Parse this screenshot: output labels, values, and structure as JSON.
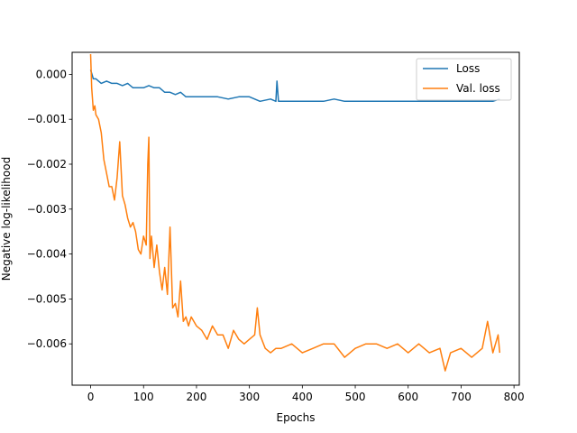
{
  "chart_data": {
    "type": "line",
    "title": "",
    "xlabel": "Epochs",
    "ylabel": "Negative log-likelihood",
    "xlim": [
      -35,
      810
    ],
    "ylim": [
      -0.00692,
      0.00049
    ],
    "xticks": [
      0,
      100,
      200,
      300,
      400,
      500,
      600,
      700,
      800
    ],
    "xtick_labels": [
      "0",
      "100",
      "200",
      "300",
      "400",
      "500",
      "600",
      "700",
      "800"
    ],
    "yticks": [
      0.0,
      -0.001,
      -0.002,
      -0.003,
      -0.004,
      -0.005,
      -0.006
    ],
    "ytick_labels": [
      "0.000",
      "−0.001",
      "−0.002",
      "−0.003",
      "−0.004",
      "−0.005",
      "−0.006"
    ],
    "grid": false,
    "legend_position": "top-right",
    "series": [
      {
        "name": "Loss",
        "color": "#1f77b4",
        "x": [
          0,
          5,
          10,
          20,
          30,
          40,
          50,
          60,
          70,
          80,
          90,
          100,
          110,
          120,
          130,
          140,
          150,
          160,
          170,
          180,
          190,
          200,
          220,
          240,
          260,
          280,
          300,
          320,
          340,
          350,
          352,
          355,
          360,
          380,
          400,
          420,
          440,
          460,
          480,
          500,
          520,
          540,
          560,
          580,
          600,
          620,
          640,
          660,
          680,
          700,
          720,
          740,
          760,
          773
        ],
        "y": [
          0.0001,
          -0.0001,
          -0.0001,
          -0.0002,
          -0.00015,
          -0.0002,
          -0.0002,
          -0.00025,
          -0.0002,
          -0.0003,
          -0.0003,
          -0.0003,
          -0.00025,
          -0.0003,
          -0.0003,
          -0.0004,
          -0.0004,
          -0.00045,
          -0.0004,
          -0.0005,
          -0.0005,
          -0.0005,
          -0.0005,
          -0.0005,
          -0.00055,
          -0.0005,
          -0.0005,
          -0.0006,
          -0.00055,
          -0.0006,
          -0.00015,
          -0.0006,
          -0.0006,
          -0.0006,
          -0.0006,
          -0.0006,
          -0.0006,
          -0.00055,
          -0.0006,
          -0.0006,
          -0.0006,
          -0.0006,
          -0.0006,
          -0.0006,
          -0.0006,
          -0.0006,
          -0.0006,
          -0.0006,
          -0.0006,
          -0.0006,
          -0.0006,
          -0.0006,
          -0.0006,
          -0.00055
        ]
      },
      {
        "name": "Val. loss",
        "color": "#ff7f0e",
        "x": [
          0,
          2,
          5,
          8,
          10,
          15,
          20,
          25,
          30,
          35,
          40,
          45,
          50,
          55,
          60,
          65,
          70,
          75,
          80,
          85,
          90,
          95,
          100,
          105,
          108,
          110,
          112,
          115,
          120,
          125,
          130,
          135,
          140,
          145,
          150,
          155,
          160,
          165,
          170,
          175,
          180,
          185,
          190,
          200,
          210,
          220,
          230,
          240,
          250,
          260,
          270,
          280,
          290,
          300,
          310,
          315,
          320,
          330,
          340,
          350,
          360,
          380,
          400,
          420,
          440,
          460,
          480,
          500,
          520,
          540,
          560,
          580,
          600,
          620,
          640,
          660,
          670,
          680,
          700,
          720,
          740,
          750,
          760,
          770,
          773
        ],
        "y": [
          0.00045,
          -0.0003,
          -0.0008,
          -0.0007,
          -0.0009,
          -0.001,
          -0.0013,
          -0.0019,
          -0.0022,
          -0.0025,
          -0.0025,
          -0.0028,
          -0.0023,
          -0.0015,
          -0.0027,
          -0.0029,
          -0.0032,
          -0.0034,
          -0.0033,
          -0.0035,
          -0.0039,
          -0.004,
          -0.0036,
          -0.0038,
          -0.002,
          -0.0014,
          -0.0041,
          -0.0036,
          -0.0043,
          -0.0038,
          -0.0044,
          -0.0048,
          -0.0043,
          -0.0049,
          -0.0034,
          -0.0052,
          -0.0051,
          -0.0054,
          -0.0046,
          -0.0055,
          -0.0054,
          -0.0056,
          -0.0054,
          -0.0056,
          -0.0057,
          -0.0059,
          -0.0056,
          -0.0058,
          -0.0058,
          -0.0061,
          -0.0057,
          -0.0059,
          -0.006,
          -0.0059,
          -0.0058,
          -0.0052,
          -0.0058,
          -0.0061,
          -0.0062,
          -0.0061,
          -0.0061,
          -0.006,
          -0.0062,
          -0.0061,
          -0.006,
          -0.006,
          -0.0063,
          -0.0061,
          -0.006,
          -0.006,
          -0.0061,
          -0.006,
          -0.0062,
          -0.006,
          -0.0062,
          -0.0061,
          -0.0066,
          -0.0062,
          -0.0061,
          -0.0063,
          -0.0061,
          -0.0055,
          -0.0062,
          -0.0058,
          -0.0062
        ]
      }
    ]
  }
}
